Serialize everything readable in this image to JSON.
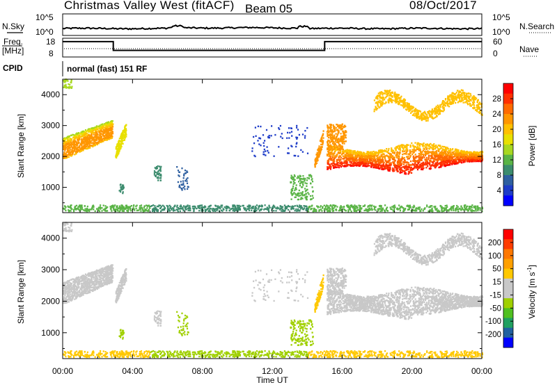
{
  "header": {
    "title": "Christmas Valley West (fitACF)",
    "beam": "Beam 05",
    "date": "08/Oct/2017"
  },
  "panels": {
    "nsky_label": "N.Sky",
    "nsearch_label": "N.Search",
    "freq_label_1": "Freq.",
    "freq_label_2": "[MHz]",
    "nave_label": "Nave",
    "cpid_label": "CPID",
    "cpid_text": "normal (fast) 151 RF",
    "noise_ticks": [
      "10^5",
      "10^0"
    ],
    "freq_left_ticks": [
      "18",
      "8"
    ],
    "freq_right_ticks": [
      "60",
      "0"
    ]
  },
  "colors": {
    "power_bar": [
      "#ff0000",
      "#ff3000",
      "#ff6a00",
      "#ff9600",
      "#ffc000",
      "#e8e000",
      "#a8d820",
      "#5ab446",
      "#3c8c6e",
      "#2e5fa0",
      "#1e3cc8",
      "#0000ff"
    ],
    "velocity_bar": [
      "#ff0000",
      "#ff3c00",
      "#ff7800",
      "#ffa000",
      "#ffc800",
      "#c8c8c8",
      "#c8c8c8",
      "#a0d000",
      "#50c020",
      "#20a060",
      "#2060a0",
      "#0000ff"
    ],
    "ground": "#c8c8c8"
  },
  "chart_data": [
    {
      "type": "heatmap",
      "name": "power",
      "xlabel": "",
      "ylabel": "Slant Range [km]",
      "x_ticks": [
        "00:00",
        "04:00",
        "08:00",
        "12:00",
        "16:00",
        "20:00",
        "00:00"
      ],
      "y_ticks": [
        "1000",
        "2000",
        "3000",
        "4000"
      ],
      "ylim": [
        180,
        4500
      ],
      "colorbar_label": "Power [dB]",
      "colorbar_ticks": [
        "28",
        "24",
        "20",
        "16",
        "12",
        "8",
        "4"
      ],
      "clim": [
        0,
        32
      ]
    },
    {
      "type": "heatmap",
      "name": "velocity",
      "xlabel": "Time UT",
      "ylabel": "Slant Range [km]",
      "x_ticks": [
        "00:00",
        "04:00",
        "08:00",
        "12:00",
        "16:00",
        "20:00",
        "00:00"
      ],
      "y_ticks": [
        "1000",
        "2000",
        "3000",
        "4000"
      ],
      "ylim": [
        180,
        4500
      ],
      "colorbar_label": "Velocity [m s^-1]",
      "colorbar_ticks": [
        "200",
        "100",
        "50",
        "15",
        "-15",
        "-50",
        "-100",
        "-200"
      ],
      "clim": [
        -250,
        250
      ]
    },
    {
      "type": "line",
      "name": "frequency",
      "ylabel": "Freq. [MHz]",
      "x": [
        0,
        2.9,
        2.9,
        15.0,
        15.0,
        24
      ],
      "y": [
        16.2,
        16.2,
        11.5,
        11.5,
        16.2,
        16.2
      ],
      "ylim": [
        8,
        18
      ]
    }
  ]
}
